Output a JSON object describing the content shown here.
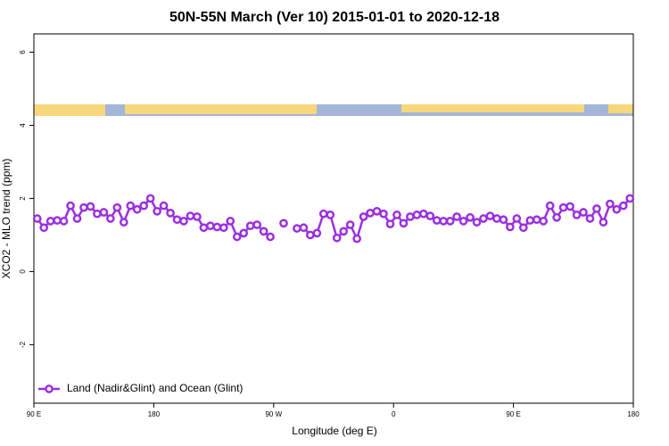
{
  "chart_data": {
    "type": "line",
    "title": "50N-55N March (Ver 10)   2015-01-01 to 2020-12-18",
    "x_label": "Longitude (deg E)",
    "y_label": "XCO2 - MLO trend (ppm)",
    "xlim": [
      90,
      540
    ],
    "xticks": [
      {
        "value": 90,
        "label": "90 E"
      },
      180,
      {
        "value": 270,
        "label": "90 W"
      },
      {
        "value": 360,
        "label": "0"
      },
      {
        "value": 450,
        "label": "90 E"
      },
      {
        "value": 540,
        "label": "180"
      }
    ],
    "ylim": [
      -3.6,
      6.5
    ],
    "yticks": [
      -2,
      0,
      2,
      4,
      6
    ],
    "legend": "bottom-left",
    "x": [
      92.5,
      97.5,
      102.5,
      107.5,
      112.5,
      117.5,
      122.5,
      127.5,
      132.5,
      137.5,
      142.5,
      147.5,
      152.5,
      157.5,
      162.5,
      167.5,
      172.5,
      177.5,
      182.5,
      187.5,
      192.5,
      197.5,
      202.5,
      207.5,
      212.5,
      217.5,
      222.5,
      227.5,
      232.5,
      237.5,
      242.5,
      247.5,
      252.5,
      257.5,
      262.5,
      267.5,
      272.5,
      277.5,
      282.5,
      287.5,
      292.5,
      297.5,
      302.5,
      307.5,
      312.5,
      317.5,
      322.5,
      327.5,
      332.5,
      337.5,
      342.5,
      347.5,
      352.5,
      357.5,
      362.5,
      367.5,
      372.5,
      377.5,
      382.5,
      387.5,
      392.5,
      397.5,
      402.5,
      407.5,
      412.5,
      417.5,
      422.5,
      427.5,
      432.5,
      437.5,
      442.5,
      447.5,
      452.5,
      457.5,
      462.5,
      467.5,
      472.5,
      477.5,
      482.5,
      487.5,
      492.5,
      497.5,
      502.5,
      507.5,
      512.5,
      517.5,
      522.5,
      527.5,
      532.5,
      537.5
    ],
    "series": [
      {
        "name": "Land (Nadir&Glint) and Ocean (Glint)",
        "color": "#9b30e0",
        "values": [
          1.45,
          1.2,
          1.38,
          1.4,
          1.38,
          1.8,
          1.45,
          1.75,
          1.78,
          1.58,
          1.62,
          1.45,
          1.75,
          1.35,
          1.8,
          1.7,
          1.8,
          2.0,
          1.65,
          1.8,
          1.6,
          1.42,
          1.38,
          1.52,
          1.5,
          1.2,
          1.25,
          1.22,
          1.2,
          1.38,
          0.95,
          1.05,
          1.25,
          1.28,
          1.1,
          0.95,
          null,
          1.32,
          null,
          1.18,
          1.2,
          1.0,
          1.05,
          1.58,
          1.55,
          0.92,
          1.1,
          1.28,
          0.9,
          1.5,
          1.6,
          1.65,
          1.58,
          1.3,
          1.55,
          1.32,
          1.5,
          1.55,
          1.58,
          1.52,
          1.4,
          1.38,
          1.38,
          1.5,
          1.38,
          1.48,
          1.35,
          1.45,
          1.52,
          1.45,
          1.42,
          1.22,
          1.45,
          1.2,
          1.4,
          1.42,
          1.38,
          1.8,
          1.48,
          1.75,
          1.78,
          1.55,
          1.62,
          1.45,
          1.72,
          1.35,
          1.85,
          1.7,
          1.8,
          2.0
        ]
      }
    ]
  }
}
